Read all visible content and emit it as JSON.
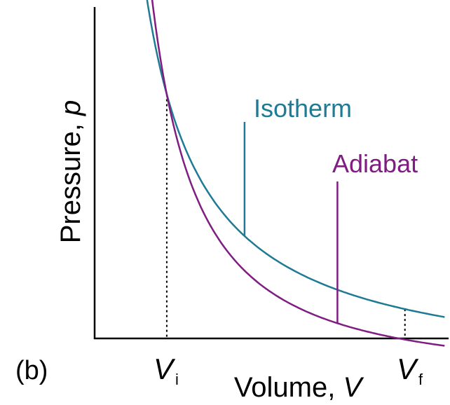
{
  "figure": {
    "panel_label": "(b)"
  },
  "chart_data": {
    "type": "line",
    "xlabel": {
      "text": "Volume, ",
      "symbol": "V"
    },
    "ylabel": {
      "text": "Pressure, ",
      "symbol": "p"
    },
    "x_ticks": [
      {
        "name": "vi",
        "symbol": "V",
        "subscript": "i",
        "value": 1
      },
      {
        "name": "vf",
        "symbol": "V",
        "subscript": "f",
        "value": 4
      }
    ],
    "xlim": [
      0.1,
      4.55
    ],
    "ylim": [
      0.15,
      1.3
    ],
    "grid": false,
    "legend": "none",
    "series": [
      {
        "key": "isotherm",
        "name": "Isotherm",
        "color": "#1f7a94",
        "x_range": [
          0.6,
          4.5
        ],
        "equation": "p = 1/V",
        "label_at_x": 1.98
      },
      {
        "key": "adiabat",
        "name": "Adiabat",
        "color": "#7f1d82",
        "x_range": [
          0.7,
          4.5
        ],
        "equation": "p = V^-1.4",
        "label_at_x": 3.15
      }
    ]
  }
}
